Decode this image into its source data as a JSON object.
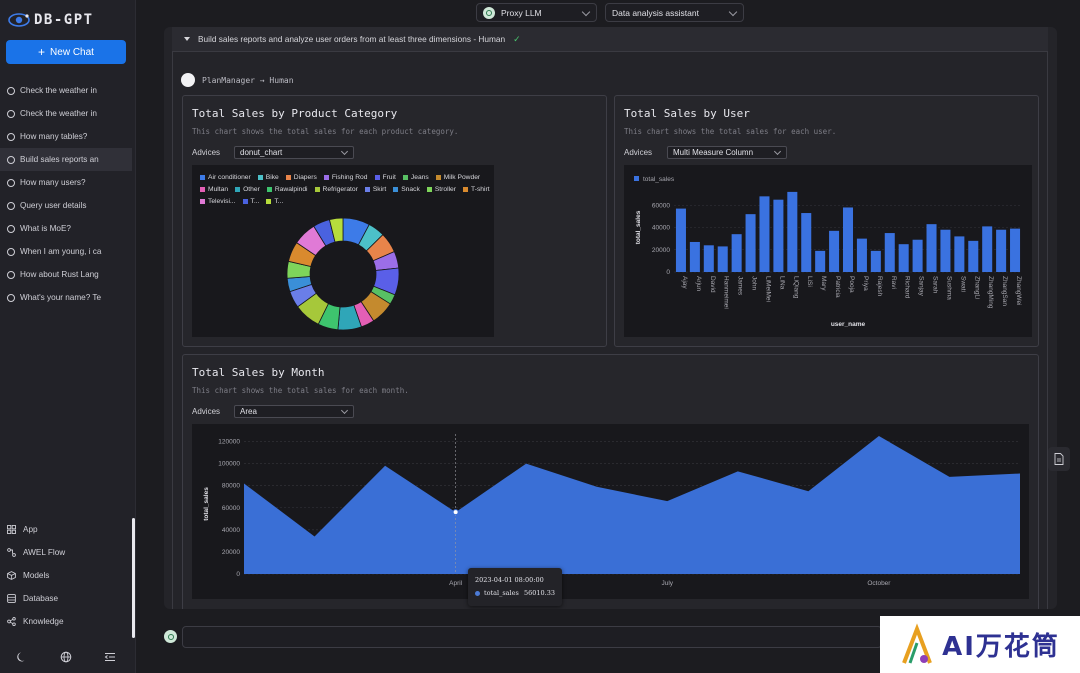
{
  "app": {
    "logo_text": "DB-GPT"
  },
  "sidebar": {
    "new_chat_label": "New Chat",
    "chats": [
      {
        "label": "Check the weather in",
        "active": false
      },
      {
        "label": "Check the weather in",
        "active": false
      },
      {
        "label": "How many tables?",
        "active": false
      },
      {
        "label": "Build sales reports an",
        "active": true
      },
      {
        "label": "How many users?",
        "active": false
      },
      {
        "label": "Query user details",
        "active": false
      },
      {
        "label": "What is MoE?",
        "active": false
      },
      {
        "label": "When I am young, i ca",
        "active": false
      },
      {
        "label": "How about Rust Lang",
        "active": false
      },
      {
        "label": "What's your name? Te",
        "active": false
      }
    ],
    "nav": [
      {
        "label": "App",
        "icon": "app-grid-icon"
      },
      {
        "label": "AWEL Flow",
        "icon": "flow-icon"
      },
      {
        "label": "Models",
        "icon": "cube-icon"
      },
      {
        "label": "Database",
        "icon": "database-icon"
      },
      {
        "label": "Knowledge",
        "icon": "share-nodes-icon"
      }
    ],
    "bottom_tools": [
      "moon-icon",
      "globe-icon",
      "collapse-menu-icon"
    ]
  },
  "header": {
    "model_select": "Proxy LLM",
    "scene_select": "Data analysis assistant"
  },
  "task": {
    "title": "Build sales reports and analyze user orders from at least three dimensions - Human",
    "status_icon": "check-icon",
    "plan_label": "PlanManager → Human"
  },
  "cards": {
    "category": {
      "title": "Total Sales by Product Category",
      "desc": "This chart shows the total sales for each product category.",
      "advices_label": "Advices",
      "advice": "donut_chart"
    },
    "user": {
      "title": "Total Sales by User",
      "desc": "This chart shows the total sales for each user.",
      "advices_label": "Advices",
      "advice": "Multi Measure Column"
    },
    "month": {
      "title": "Total Sales by Month",
      "desc": "This chart shows the total sales for each month.",
      "advices_label": "Advices",
      "advice": "Area"
    }
  },
  "tooltip": {
    "time": "2023-04-01 08:00:00",
    "series": "total_sales",
    "value": "56010.33"
  },
  "watermark": {
    "text": "AI万花筒"
  },
  "chart_data": [
    {
      "type": "pie",
      "variant": "donut",
      "title": "Total Sales by Product Category",
      "categories": [
        "Air conditioner",
        "Bike",
        "Diapers",
        "Fishing Rod",
        "Fruit",
        "Jeans",
        "Milk Powder",
        "Multan",
        "Other",
        "Rawalpindi",
        "Refrigerator",
        "Skirt",
        "Snack",
        "Stroller",
        "T-shirt",
        "Televisi...",
        "T...",
        "T..."
      ],
      "colors": [
        "#3d7be8",
        "#4cc0c8",
        "#e8844a",
        "#9b6ee8",
        "#5a5fe8",
        "#58c064",
        "#c48a2e",
        "#e45fb5",
        "#2fa6b8",
        "#3ec46e",
        "#a6c83a",
        "#6a7ee8",
        "#3a8fd8",
        "#7ed55b",
        "#d98a2e",
        "#e07ad6",
        "#4a62e0",
        "#b7dd3c"
      ],
      "values": [
        8,
        5,
        6,
        5,
        8,
        3,
        7,
        4,
        7,
        6,
        8,
        5,
        4,
        5,
        6,
        7,
        5,
        4
      ]
    },
    {
      "type": "bar",
      "title": "Total Sales by User",
      "xlabel": "user_name",
      "ylabel": "total_sales",
      "legend": "total_sales",
      "yticks": [
        0,
        20000,
        40000,
        60000
      ],
      "ylim": [
        0,
        80000
      ],
      "categories": [
        "Ajay",
        "Arjun",
        "David",
        "Hanmeimei",
        "James",
        "John",
        "LiMeiMei",
        "LiNa",
        "LiQiang",
        "LiSi",
        "Mary",
        "Patricia",
        "Pooja",
        "Priya",
        "Rajesh",
        "Ravi",
        "Richard",
        "Sanjay",
        "Sarah",
        "Sushma",
        "Swati",
        "ZhangLi",
        "ZhangMing",
        "ZhangSan",
        "ZhangWei"
      ],
      "values": [
        57000,
        27000,
        24000,
        23000,
        34000,
        52000,
        68000,
        65000,
        72000,
        53000,
        19000,
        37000,
        58000,
        30000,
        19000,
        35000,
        25000,
        29000,
        43000,
        38000,
        32000,
        28000,
        41000,
        38000,
        39000
      ]
    },
    {
      "type": "area",
      "title": "Total Sales by Month",
      "ylabel": "total_sales",
      "yticks": [
        0,
        20000,
        40000,
        60000,
        80000,
        100000,
        120000
      ],
      "ylim": [
        0,
        125000
      ],
      "xticks": [
        "April",
        "July",
        "October"
      ],
      "x": [
        "2023-01",
        "2023-02",
        "2023-03",
        "2023-04",
        "2023-05",
        "2023-06",
        "2023-07",
        "2023-08",
        "2023-09",
        "2023-10",
        "2023-11",
        "2023-12"
      ],
      "values": [
        82000,
        34000,
        98000,
        56010.33,
        100000,
        79000,
        66000,
        93000,
        75000,
        125000,
        88000,
        91000
      ]
    }
  ]
}
